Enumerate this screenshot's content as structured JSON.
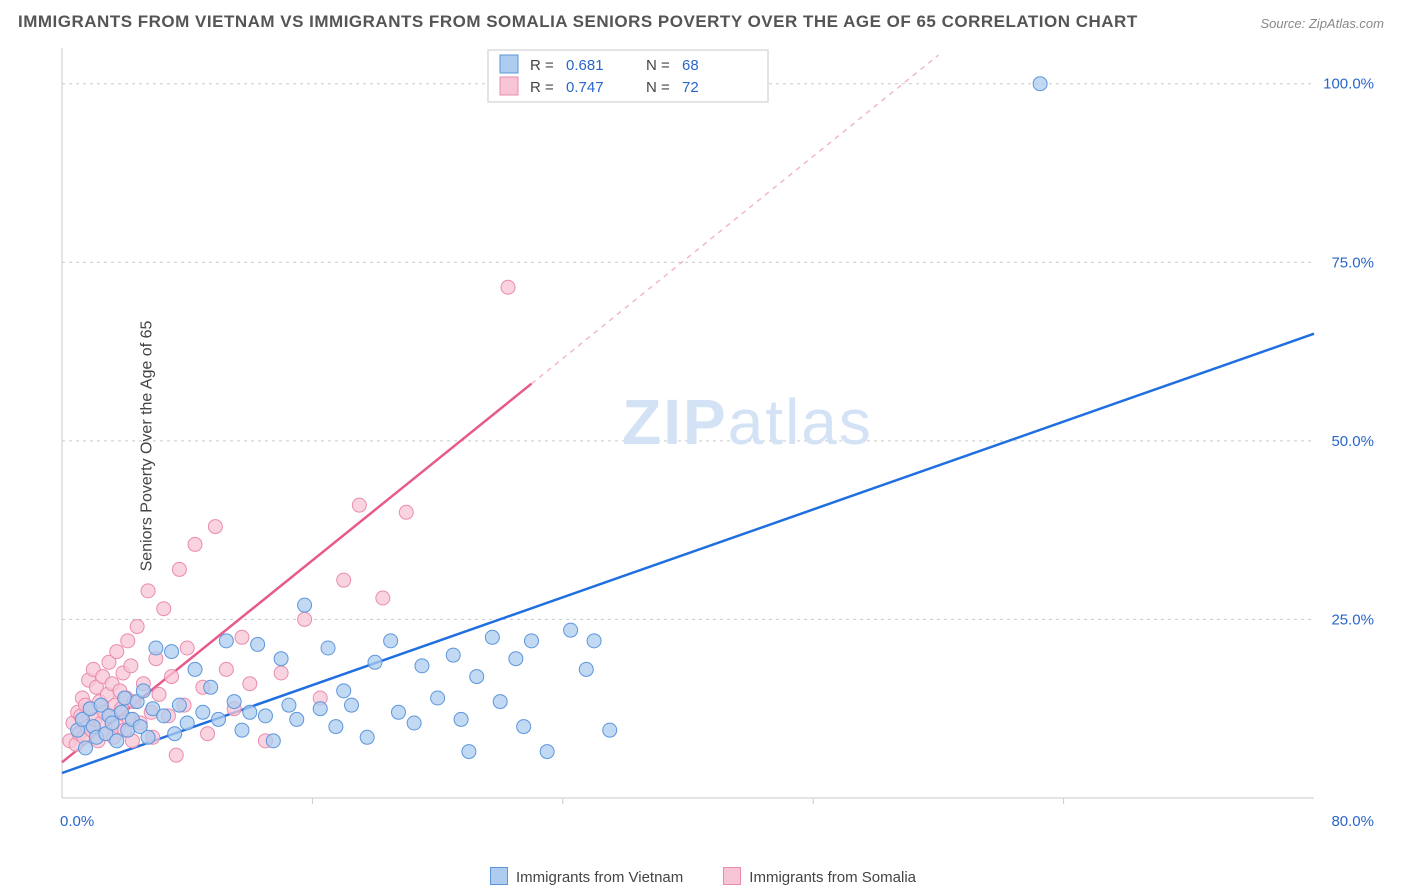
{
  "title": "IMMIGRANTS FROM VIETNAM VS IMMIGRANTS FROM SOMALIA SENIORS POVERTY OVER THE AGE OF 65 CORRELATION CHART",
  "source_prefix": "Source: ",
  "source_name": "ZipAtlas.com",
  "ylabel": "Seniors Poverty Over the Age of 65",
  "watermark_bold": "ZIP",
  "watermark_rest": "atlas",
  "chart": {
    "type": "scatter",
    "background_color": "#ffffff",
    "grid_color": "#c9c9c9",
    "grid_dash": "3 4",
    "xlim": [
      0,
      80
    ],
    "ylim": [
      0,
      105
    ],
    "x_ticks": [
      {
        "v": 0,
        "label": "0.0%"
      },
      {
        "v": 80,
        "label": "80.0%"
      }
    ],
    "y_ticks": [
      {
        "v": 25,
        "label": "25.0%"
      },
      {
        "v": 50,
        "label": "50.0%"
      },
      {
        "v": 75,
        "label": "75.0%"
      },
      {
        "v": 100,
        "label": "100.0%"
      }
    ],
    "x_grid_minor": [
      16,
      32,
      48,
      64
    ],
    "legend_top": {
      "rows": [
        {
          "swatch": "blue",
          "r_label": "R =",
          "r_val": "0.681",
          "n_label": "N =",
          "n_val": "68"
        },
        {
          "swatch": "pink",
          "r_label": "R =",
          "r_val": "0.747",
          "n_label": "N =",
          "n_val": "72"
        }
      ]
    },
    "bottom_legend": [
      {
        "swatch": "blue",
        "label": "Immigrants from Vietnam"
      },
      {
        "swatch": "pink",
        "label": "Immigrants from Somalia"
      }
    ],
    "series": [
      {
        "name": "Immigrants from Vietnam",
        "color_fill": "#aeccef",
        "color_stroke": "#5c96db",
        "marker_r": 7,
        "trend": {
          "color": "#1f6fe0",
          "width": 2.5,
          "x1": 0,
          "y1": 3.5,
          "x2": 80,
          "y2": 65
        },
        "points": [
          [
            1.0,
            9.5
          ],
          [
            1.3,
            11.0
          ],
          [
            1.5,
            7.0
          ],
          [
            1.8,
            12.5
          ],
          [
            2.0,
            10.0
          ],
          [
            2.2,
            8.5
          ],
          [
            2.5,
            13.0
          ],
          [
            2.8,
            9.0
          ],
          [
            3.0,
            11.5
          ],
          [
            3.2,
            10.5
          ],
          [
            3.5,
            8.0
          ],
          [
            3.8,
            12.0
          ],
          [
            4.0,
            14.0
          ],
          [
            4.2,
            9.5
          ],
          [
            4.5,
            11.0
          ],
          [
            4.8,
            13.5
          ],
          [
            5.0,
            10.0
          ],
          [
            5.2,
            15.0
          ],
          [
            5.5,
            8.5
          ],
          [
            5.8,
            12.5
          ],
          [
            6.0,
            21.0
          ],
          [
            6.5,
            11.5
          ],
          [
            7.0,
            20.5
          ],
          [
            7.2,
            9.0
          ],
          [
            7.5,
            13.0
          ],
          [
            8.0,
            10.5
          ],
          [
            8.5,
            18.0
          ],
          [
            9.0,
            12.0
          ],
          [
            9.5,
            15.5
          ],
          [
            10.0,
            11.0
          ],
          [
            10.5,
            22.0
          ],
          [
            11.0,
            13.5
          ],
          [
            11.5,
            9.5
          ],
          [
            12.0,
            12.0
          ],
          [
            12.5,
            21.5
          ],
          [
            13.0,
            11.5
          ],
          [
            13.5,
            8.0
          ],
          [
            14.0,
            19.5
          ],
          [
            14.5,
            13.0
          ],
          [
            15.0,
            11.0
          ],
          [
            15.5,
            27.0
          ],
          [
            16.5,
            12.5
          ],
          [
            17.0,
            21.0
          ],
          [
            17.5,
            10.0
          ],
          [
            18.0,
            15.0
          ],
          [
            18.5,
            13.0
          ],
          [
            19.5,
            8.5
          ],
          [
            20.0,
            19.0
          ],
          [
            21.0,
            22.0
          ],
          [
            21.5,
            12.0
          ],
          [
            22.5,
            10.5
          ],
          [
            23.0,
            18.5
          ],
          [
            24.0,
            14.0
          ],
          [
            25.0,
            20.0
          ],
          [
            25.5,
            11.0
          ],
          [
            26.0,
            6.5
          ],
          [
            26.5,
            17.0
          ],
          [
            27.5,
            22.5
          ],
          [
            28.0,
            13.5
          ],
          [
            29.0,
            19.5
          ],
          [
            29.5,
            10.0
          ],
          [
            30.0,
            22.0
          ],
          [
            31.0,
            6.5
          ],
          [
            32.5,
            23.5
          ],
          [
            33.5,
            18.0
          ],
          [
            34.0,
            22.0
          ],
          [
            35.0,
            9.5
          ],
          [
            62.5,
            100.0
          ]
        ]
      },
      {
        "name": "Immigrants from Somalia",
        "color_fill": "#f7c5d6",
        "color_stroke": "#ea8cad",
        "marker_r": 7,
        "trend": {
          "color": "#e75a8a",
          "width": 2.5,
          "x1": 0,
          "y1": 5.0,
          "x2_solid": 30,
          "y2_solid": 58,
          "x2_dash": 56,
          "y2_dash": 104
        },
        "points": [
          [
            0.5,
            8.0
          ],
          [
            0.7,
            10.5
          ],
          [
            0.9,
            7.5
          ],
          [
            1.0,
            12.0
          ],
          [
            1.1,
            9.0
          ],
          [
            1.2,
            11.5
          ],
          [
            1.3,
            14.0
          ],
          [
            1.4,
            8.5
          ],
          [
            1.5,
            13.0
          ],
          [
            1.6,
            10.0
          ],
          [
            1.7,
            16.5
          ],
          [
            1.8,
            12.5
          ],
          [
            1.9,
            9.5
          ],
          [
            2.0,
            18.0
          ],
          [
            2.1,
            11.0
          ],
          [
            2.2,
            15.5
          ],
          [
            2.3,
            8.0
          ],
          [
            2.4,
            13.5
          ],
          [
            2.5,
            10.5
          ],
          [
            2.6,
            17.0
          ],
          [
            2.7,
            12.0
          ],
          [
            2.8,
            9.0
          ],
          [
            2.9,
            14.5
          ],
          [
            3.0,
            19.0
          ],
          [
            3.1,
            11.5
          ],
          [
            3.2,
            16.0
          ],
          [
            3.3,
            8.5
          ],
          [
            3.4,
            13.0
          ],
          [
            3.5,
            20.5
          ],
          [
            3.6,
            10.0
          ],
          [
            3.7,
            15.0
          ],
          [
            3.8,
            12.5
          ],
          [
            3.9,
            17.5
          ],
          [
            4.0,
            9.5
          ],
          [
            4.1,
            14.0
          ],
          [
            4.2,
            22.0
          ],
          [
            4.3,
            11.0
          ],
          [
            4.4,
            18.5
          ],
          [
            4.5,
            8.0
          ],
          [
            4.6,
            13.5
          ],
          [
            4.8,
            24.0
          ],
          [
            5.0,
            10.5
          ],
          [
            5.2,
            16.0
          ],
          [
            5.5,
            29.0
          ],
          [
            5.7,
            12.0
          ],
          [
            5.8,
            8.5
          ],
          [
            6.0,
            19.5
          ],
          [
            6.2,
            14.5
          ],
          [
            6.5,
            26.5
          ],
          [
            6.8,
            11.5
          ],
          [
            7.0,
            17.0
          ],
          [
            7.3,
            6.0
          ],
          [
            7.5,
            32.0
          ],
          [
            7.8,
            13.0
          ],
          [
            8.0,
            21.0
          ],
          [
            8.5,
            35.5
          ],
          [
            9.0,
            15.5
          ],
          [
            9.3,
            9.0
          ],
          [
            9.8,
            38.0
          ],
          [
            10.5,
            18.0
          ],
          [
            11.0,
            12.5
          ],
          [
            11.5,
            22.5
          ],
          [
            12.0,
            16.0
          ],
          [
            13.0,
            8.0
          ],
          [
            14.0,
            17.5
          ],
          [
            15.5,
            25.0
          ],
          [
            16.5,
            14.0
          ],
          [
            18.0,
            30.5
          ],
          [
            19.0,
            41.0
          ],
          [
            20.5,
            28.0
          ],
          [
            22.0,
            40.0
          ],
          [
            28.5,
            71.5
          ]
        ]
      }
    ]
  }
}
